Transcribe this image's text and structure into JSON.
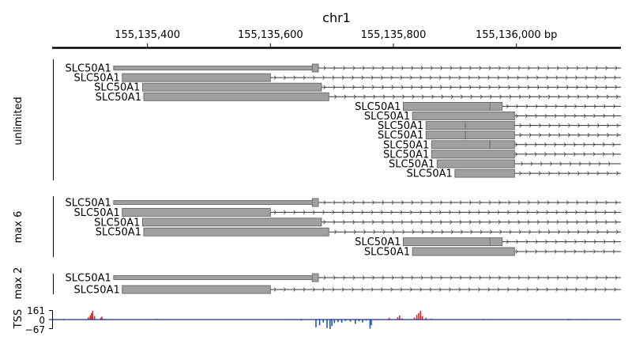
{
  "figure": {
    "chromosome": "chr1",
    "axis_tick_labels": [
      "155,135,400",
      "155,135,600",
      "155,135,800",
      "155,136,000 bp"
    ],
    "axis_tick_positions_bp": [
      155135400,
      155135600,
      155135800,
      155136000
    ],
    "view_range_bp": [
      155135245,
      155136170
    ]
  },
  "tracks": [
    {
      "label": "unlimited",
      "transcripts": [
        {
          "name": "SLC50A1",
          "tx_start": 155135345,
          "tx_end": 155136170,
          "exons": [
            [
              155135345,
              155135672
            ],
            [
              155135668,
              155135678
            ]
          ]
        },
        {
          "name": "SLC50A1",
          "tx_start": 155135359,
          "tx_end": 155136170,
          "exons": [
            [
              155135359,
              155135600
            ]
          ]
        },
        {
          "name": "SLC50A1",
          "tx_start": 155135392,
          "tx_end": 155136170,
          "exons": [
            [
              155135392,
              155135683
            ]
          ]
        },
        {
          "name": "SLC50A1",
          "tx_start": 155135394,
          "tx_end": 155136170,
          "exons": [
            [
              155135394,
              155135695
            ]
          ]
        },
        {
          "name": "SLC50A1",
          "tx_start": 155135816,
          "tx_end": 155136170,
          "exons": [
            [
              155135816,
              155135958
            ],
            [
              155135957,
              155135977
            ]
          ]
        },
        {
          "name": "SLC50A1",
          "tx_start": 155135831,
          "tx_end": 155136170,
          "exons": [
            [
              155135831,
              155135997
            ]
          ]
        },
        {
          "name": "SLC50A1",
          "tx_start": 155135853,
          "tx_end": 155136170,
          "exons": [
            [
              155135853,
              155135918
            ],
            [
              155135917,
              155135997
            ]
          ]
        },
        {
          "name": "SLC50A1",
          "tx_start": 155135853,
          "tx_end": 155136170,
          "exons": [
            [
              155135853,
              155135918
            ],
            [
              155135917,
              155135997
            ]
          ]
        },
        {
          "name": "SLC50A1",
          "tx_start": 155135862,
          "tx_end": 155136170,
          "exons": [
            [
              155135862,
              155135957
            ],
            [
              155135957,
              155135997
            ]
          ]
        },
        {
          "name": "SLC50A1",
          "tx_start": 155135862,
          "tx_end": 155136170,
          "exons": [
            [
              155135862,
              155135997
            ]
          ]
        },
        {
          "name": "SLC50A1",
          "tx_start": 155135871,
          "tx_end": 155136170,
          "exons": [
            [
              155135871,
              155135997
            ]
          ]
        },
        {
          "name": "SLC50A1",
          "tx_start": 155135900,
          "tx_end": 155136170,
          "exons": [
            [
              155135900,
              155135997
            ]
          ]
        }
      ]
    },
    {
      "label": "max 6",
      "transcripts": [
        {
          "name": "SLC50A1",
          "tx_start": 155135345,
          "tx_end": 155136170,
          "exons": [
            [
              155135345,
              155135672
            ],
            [
              155135668,
              155135678
            ]
          ]
        },
        {
          "name": "SLC50A1",
          "tx_start": 155135359,
          "tx_end": 155136170,
          "exons": [
            [
              155135359,
              155135600
            ]
          ]
        },
        {
          "name": "SLC50A1",
          "tx_start": 155135392,
          "tx_end": 155136170,
          "exons": [
            [
              155135392,
              155135683
            ]
          ]
        },
        {
          "name": "SLC50A1",
          "tx_start": 155135394,
          "tx_end": 155136170,
          "exons": [
            [
              155135394,
              155135695
            ]
          ]
        },
        {
          "name": "SLC50A1",
          "tx_start": 155135816,
          "tx_end": 155136170,
          "exons": [
            [
              155135816,
              155135958
            ],
            [
              155135957,
              155135977
            ]
          ]
        },
        {
          "name": "SLC50A1",
          "tx_start": 155135831,
          "tx_end": 155136170,
          "exons": [
            [
              155135831,
              155135997
            ]
          ]
        }
      ]
    },
    {
      "label": "max 2",
      "transcripts": [
        {
          "name": "SLC50A1",
          "tx_start": 155135345,
          "tx_end": 155136170,
          "exons": [
            [
              155135345,
              155135672
            ],
            [
              155135668,
              155135678
            ]
          ]
        },
        {
          "name": "SLC50A1",
          "tx_start": 155135359,
          "tx_end": 155136170,
          "exons": [
            [
              155135359,
              155135600
            ]
          ]
        }
      ]
    }
  ],
  "signal_track": {
    "label": "TSS",
    "tick_labels": [
      "161",
      "0",
      "−67"
    ],
    "y_max": 161,
    "y_min": -67,
    "positive_color": "#e8232a",
    "negative_color": "#1f57b8",
    "positive_peaks": [
      {
        "bp": 155135304,
        "v": 40
      },
      {
        "bp": 155135307,
        "v": 70
      },
      {
        "bp": 155135309,
        "v": 110
      },
      {
        "bp": 155135311,
        "v": 150
      },
      {
        "bp": 155135314,
        "v": 60
      },
      {
        "bp": 155135324,
        "v": 30
      },
      {
        "bp": 155135326,
        "v": 50
      },
      {
        "bp": 155135264,
        "v": 10
      },
      {
        "bp": 155135330,
        "v": 12
      },
      {
        "bp": 155135335,
        "v": 8
      },
      {
        "bp": 155135412,
        "v": 8
      },
      {
        "bp": 155135415,
        "v": 12
      },
      {
        "bp": 155135793,
        "v": 30
      },
      {
        "bp": 155135807,
        "v": 40
      },
      {
        "bp": 155135810,
        "v": 70
      },
      {
        "bp": 155135814,
        "v": 20
      },
      {
        "bp": 155135834,
        "v": 35
      },
      {
        "bp": 155135838,
        "v": 80
      },
      {
        "bp": 155135841,
        "v": 110
      },
      {
        "bp": 155135844,
        "v": 150
      },
      {
        "bp": 155135847,
        "v": 60
      },
      {
        "bp": 155135853,
        "v": 30
      },
      {
        "bp": 155135862,
        "v": 15
      },
      {
        "bp": 155135947,
        "v": 10
      },
      {
        "bp": 155135961,
        "v": 8
      },
      {
        "bp": 155135974,
        "v": 8
      },
      {
        "bp": 155136085,
        "v": 12
      },
      {
        "bp": 155136115,
        "v": 8
      }
    ],
    "negative_peaks": [
      {
        "bp": 155135674,
        "v": -55
      },
      {
        "bp": 155135680,
        "v": -40
      },
      {
        "bp": 155135686,
        "v": -20
      },
      {
        "bp": 155135692,
        "v": -60
      },
      {
        "bp": 155135697,
        "v": -67
      },
      {
        "bp": 155135700,
        "v": -45
      },
      {
        "bp": 155135704,
        "v": -25
      },
      {
        "bp": 155135710,
        "v": -18
      },
      {
        "bp": 155135716,
        "v": -22
      },
      {
        "bp": 155135722,
        "v": -10
      },
      {
        "bp": 155135730,
        "v": -15
      },
      {
        "bp": 155135738,
        "v": -30
      },
      {
        "bp": 155135744,
        "v": -12
      },
      {
        "bp": 155135750,
        "v": -20
      },
      {
        "bp": 155135756,
        "v": -8
      },
      {
        "bp": 155135762,
        "v": -64
      },
      {
        "bp": 155135764,
        "v": -40
      },
      {
        "bp": 155135650,
        "v": -6
      },
      {
        "bp": 155135633,
        "v": -4
      }
    ]
  }
}
